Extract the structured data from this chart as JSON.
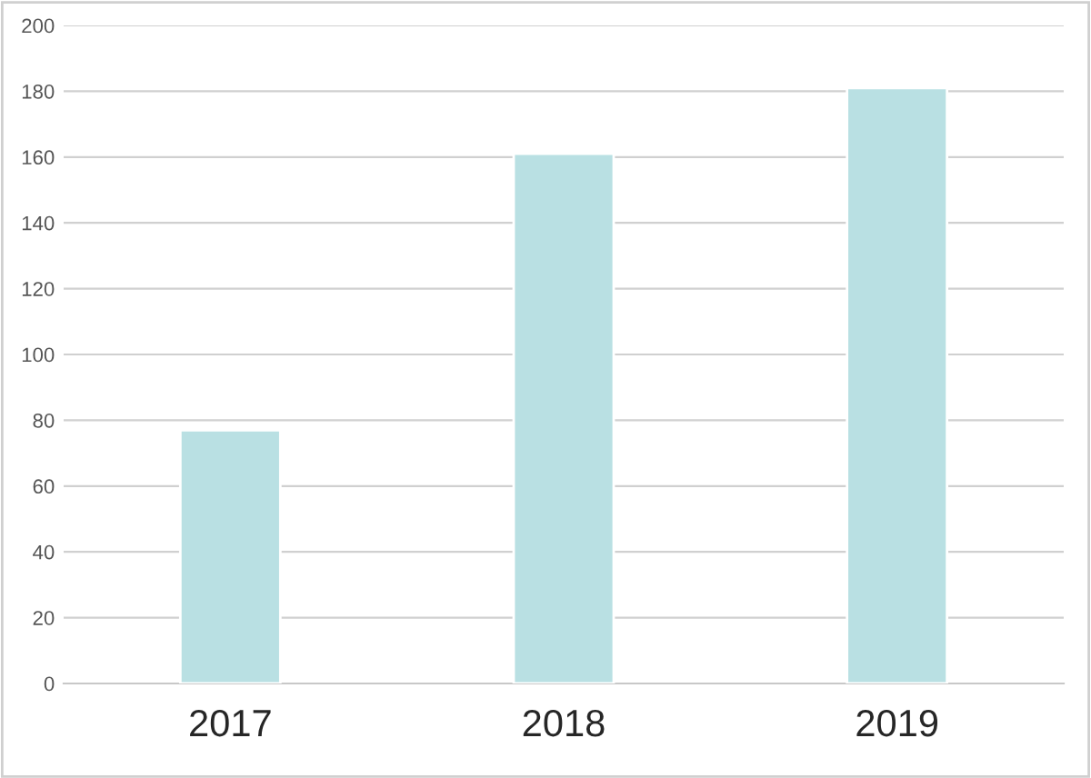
{
  "chart_data": {
    "type": "bar",
    "categories": [
      "2017",
      "2018",
      "2019"
    ],
    "values": [
      77,
      161,
      181
    ],
    "color": "#b9e0e3",
    "ylim": [
      0,
      200
    ],
    "yticks": [
      0,
      20,
      40,
      60,
      80,
      100,
      120,
      140,
      160,
      180,
      200
    ],
    "grid": "y",
    "legend": false
  }
}
